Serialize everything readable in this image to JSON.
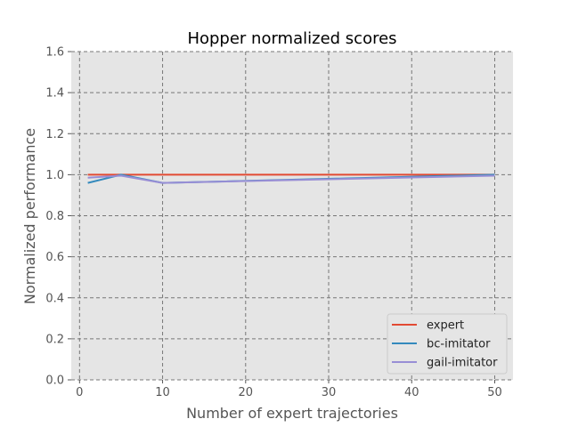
{
  "chart_data": {
    "type": "line",
    "title": "Hopper normalized scores",
    "xlabel": "Number of expert trajectories",
    "ylabel": "Normalized performance",
    "xlim": [
      -1,
      52.2
    ],
    "ylim": [
      0.0,
      1.6
    ],
    "xticks": [
      0,
      10,
      20,
      30,
      40,
      50
    ],
    "yticks": [
      0.0,
      0.2,
      0.4,
      0.6,
      0.8,
      1.0,
      1.2,
      1.4,
      1.6
    ],
    "ytick_labels": [
      "0.0",
      "0.2",
      "0.4",
      "0.6",
      "0.8",
      "1.0",
      "1.2",
      "1.4",
      "1.6"
    ],
    "grid": true,
    "legend_position": "bottom-right",
    "series": [
      {
        "name": "expert",
        "color": "#e24a33",
        "x": [
          1,
          5,
          10,
          50
        ],
        "y": [
          1.0,
          1.0,
          1.0,
          1.0
        ]
      },
      {
        "name": "bc-imitator",
        "color": "#348abd",
        "x": [
          1,
          5,
          10,
          50
        ],
        "y": [
          0.96,
          1.0,
          0.96,
          1.0
        ]
      },
      {
        "name": "gail-imitator",
        "color": "#988ed5",
        "x": [
          1,
          5,
          10,
          50
        ],
        "y": [
          0.985,
          0.995,
          0.96,
          0.995
        ]
      }
    ]
  }
}
